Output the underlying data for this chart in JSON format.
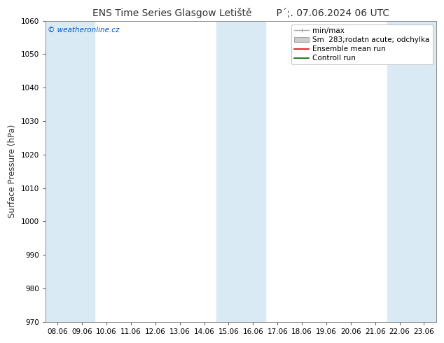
{
  "title_left": "ENS Time Series Glasgow Letiště",
  "title_right": "P´;. 07.06.2024 06 UTC",
  "ylabel": "Surface Pressure (hPa)",
  "ylim": [
    970,
    1060
  ],
  "yticks": [
    970,
    980,
    990,
    1000,
    1010,
    1020,
    1030,
    1040,
    1050,
    1060
  ],
  "xticks_labels": [
    "08.06",
    "09.06",
    "10.06",
    "11.06",
    "12.06",
    "13.06",
    "14.06",
    "15.06",
    "16.06",
    "17.06",
    "18.06",
    "19.06",
    "20.06",
    "21.06",
    "22.06",
    "23.06"
  ],
  "shaded_columns": [
    0,
    1,
    7,
    8,
    14,
    15
  ],
  "shade_color": "#daeaf5",
  "watermark": "© weatheronline.cz",
  "watermark_color": "#0055cc",
  "legend_items": [
    {
      "label": "min/max",
      "color": "#aaaaaa",
      "lw": 1,
      "type": "errorbar"
    },
    {
      "label": "Sm  283;rodatn acute; odchylka",
      "color": "#cccccc",
      "lw": 6,
      "type": "band"
    },
    {
      "label": "Ensemble mean run",
      "color": "#dd0000",
      "lw": 1.2,
      "type": "line"
    },
    {
      "label": "Controll run",
      "color": "#006600",
      "lw": 1.2,
      "type": "line"
    }
  ],
  "background_color": "#ffffff",
  "plot_bg_color": "#ffffff",
  "title_fontsize": 10,
  "tick_fontsize": 7.5,
  "ylabel_fontsize": 8.5,
  "legend_fontsize": 7.5
}
